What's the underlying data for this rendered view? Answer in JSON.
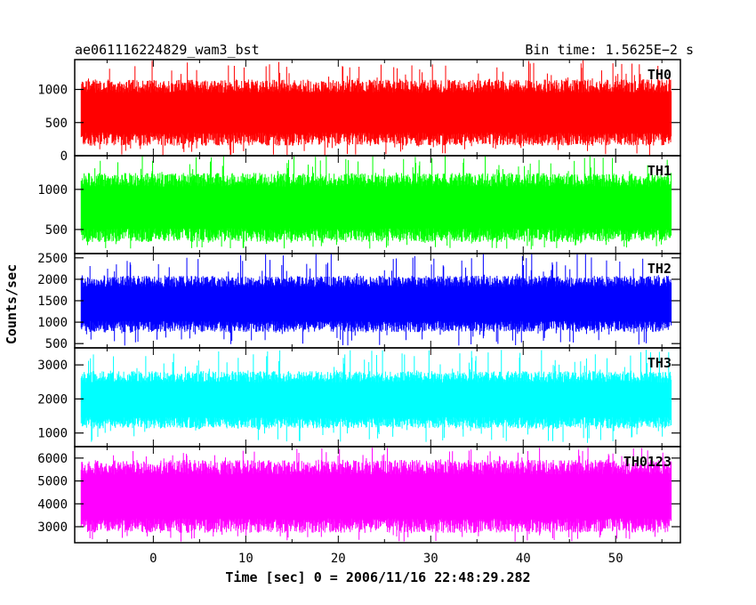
{
  "chart_data": {
    "type": "line",
    "title_left": "ae061116224829_wam3_bst",
    "title_right": "Bin time: 1.5625E−2 s",
    "xlabel": "Time [sec] 0 = 2006/11/16 22:48:29.282",
    "ylabel": "Counts/sec",
    "xlim": [
      -8.5,
      57
    ],
    "x_ticks": [
      "0",
      "10",
      "20",
      "30",
      "40",
      "50"
    ],
    "data_x_range": [
      -7.8,
      56.0
    ],
    "grid": false,
    "panels": [
      {
        "name": "TH0",
        "color": "#ff0000",
        "ylim": [
          0,
          1450
        ],
        "y_ticks": [
          "0",
          "500",
          "1000"
        ],
        "typical_low": 250,
        "typical_high": 1050,
        "min": 0,
        "max": 1450
      },
      {
        "name": "TH1",
        "color": "#00ff00",
        "ylim": [
          200,
          1420
        ],
        "y_ticks": [
          "500",
          "1000"
        ],
        "typical_low": 430,
        "typical_high": 1120,
        "min": 250,
        "max": 1420
      },
      {
        "name": "TH2",
        "color": "#0000ff",
        "ylim": [
          400,
          2600
        ],
        "y_ticks": [
          "500",
          "1000",
          "1500",
          "2000",
          "2500"
        ],
        "typical_low": 900,
        "typical_high": 1950,
        "min": 450,
        "max": 2600
      },
      {
        "name": "TH3",
        "color": "#00ffff",
        "ylim": [
          600,
          3500
        ],
        "y_ticks": [
          "1000",
          "2000",
          "3000"
        ],
        "typical_low": 1300,
        "typical_high": 2650,
        "min": 700,
        "max": 3450
      },
      {
        "name": "TH0123",
        "color": "#ff00ff",
        "ylim": [
          2300,
          6500
        ],
        "y_ticks": [
          "3000",
          "4000",
          "5000",
          "6000"
        ],
        "typical_low": 3050,
        "typical_high": 5600,
        "min": 2350,
        "max": 6450
      }
    ]
  }
}
